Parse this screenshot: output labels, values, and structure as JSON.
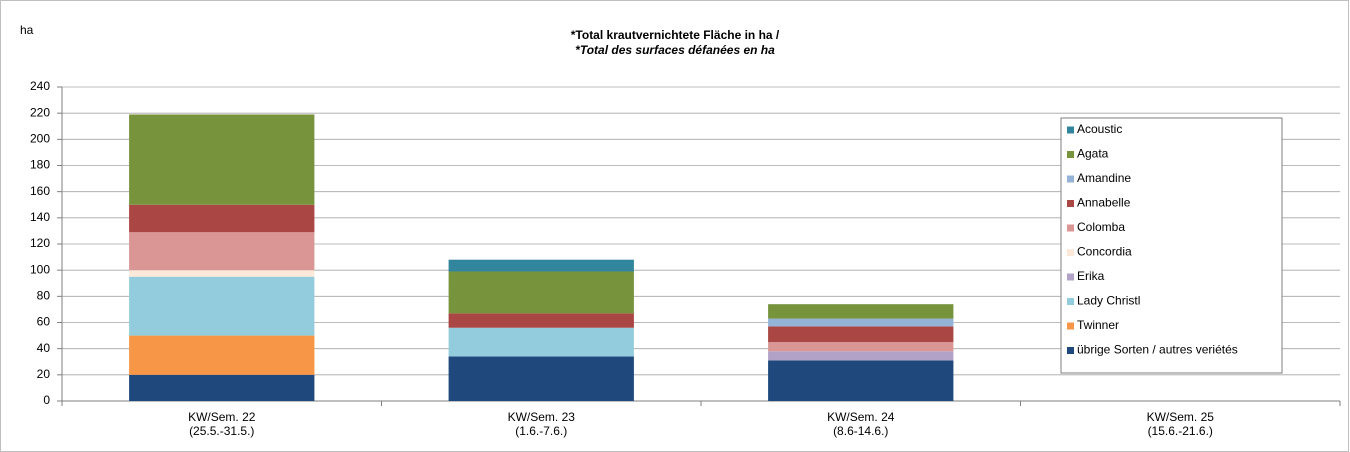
{
  "chart_data": {
    "type": "stacked_bar",
    "title": "*Total krautvernichtete Fläche in ha /",
    "subtitle": "*Total des surfaces défanées en  ha",
    "y_label": "ha",
    "categories": [
      "KW/Sem. 22",
      "KW/Sem. 23",
      "KW/Sem. 24",
      "KW/Sem. 25"
    ],
    "category_sublabels": [
      "(25.5.-31.5.)",
      "(1.6.-7.6.)",
      "(8.6-14.6.)",
      "(15.6.-21.6.)"
    ],
    "series": [
      {
        "name": "Acoustic",
        "color": "#31859c",
        "values": [
          0,
          9,
          0,
          0
        ]
      },
      {
        "name": "Agata",
        "color": "#77933c",
        "values": [
          69,
          32,
          11,
          0
        ]
      },
      {
        "name": "Amandine",
        "color": "#95b3d7",
        "values": [
          0,
          0,
          6,
          0
        ]
      },
      {
        "name": "Annabelle",
        "color": "#aa4643",
        "values": [
          21,
          11,
          12,
          0
        ]
      },
      {
        "name": "Colomba",
        "color": "#d99694",
        "values": [
          29,
          0,
          7,
          0
        ]
      },
      {
        "name": "Concordia",
        "color": "#fde9d9",
        "values": [
          5,
          0,
          0,
          0
        ]
      },
      {
        "name": "Erika",
        "color": "#b3a2c7",
        "values": [
          0,
          0,
          7,
          0
        ]
      },
      {
        "name": "Lady Christl",
        "color": "#93cddd",
        "values": [
          45,
          22,
          0,
          0
        ]
      },
      {
        "name": "Twinner",
        "color": "#f79646",
        "values": [
          30,
          0,
          0,
          0
        ]
      },
      {
        "name": "übrige Sorten / autres veriétés",
        "color": "#1f497d",
        "values": [
          20,
          34,
          31,
          0
        ]
      }
    ],
    "ylim": [
      0,
      240
    ],
    "yticks": [
      0,
      20,
      40,
      60,
      80,
      100,
      120,
      140,
      160,
      180,
      200,
      220,
      240
    ],
    "grid": true,
    "legend": "upper right"
  }
}
